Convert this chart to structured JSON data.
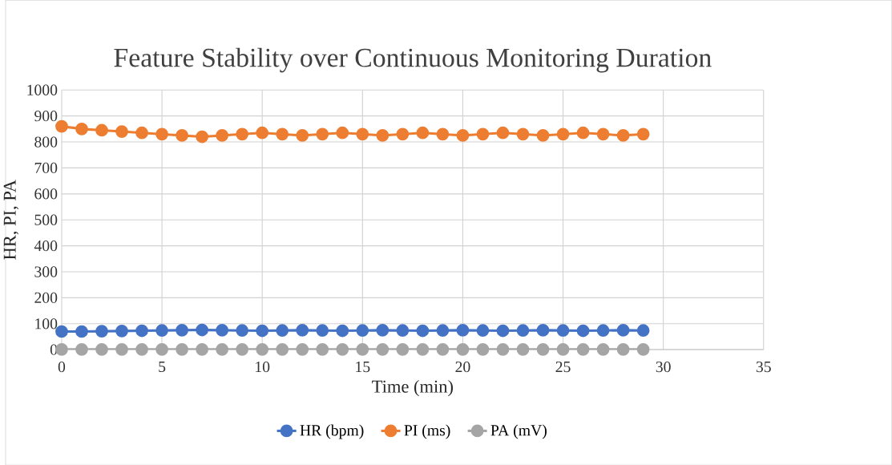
{
  "chart_data": {
    "type": "line",
    "title": "Feature Stability over Continuous Monitoring Duration",
    "xlabel": "Time (min)",
    "ylabel": "HR, PI, PA",
    "x": [
      0,
      1,
      2,
      3,
      4,
      5,
      6,
      7,
      8,
      9,
      10,
      11,
      12,
      13,
      14,
      15,
      16,
      17,
      18,
      19,
      20,
      21,
      22,
      23,
      24,
      25,
      26,
      27,
      28,
      29
    ],
    "series": [
      {
        "name": "HR (bpm)",
        "color": "#4472c4",
        "values": [
          70,
          70,
          71,
          72,
          73,
          74,
          75,
          76,
          75,
          74,
          73,
          74,
          75,
          74,
          73,
          74,
          75,
          74,
          73,
          74,
          75,
          74,
          73,
          74,
          75,
          74,
          73,
          74,
          75,
          74
        ]
      },
      {
        "name": "PI (ms)",
        "color": "#ed7d31",
        "values": [
          860,
          850,
          845,
          840,
          835,
          830,
          825,
          820,
          825,
          830,
          835,
          830,
          825,
          830,
          835,
          830,
          825,
          830,
          835,
          830,
          825,
          830,
          835,
          830,
          825,
          830,
          835,
          830,
          825,
          830
        ]
      },
      {
        "name": "PA (mV)",
        "color": "#a5a5a5",
        "values": [
          1,
          1,
          1,
          1,
          1,
          1,
          1,
          1,
          1,
          1,
          1,
          1,
          1,
          1,
          1,
          1,
          1,
          1,
          1,
          1,
          1,
          1,
          1,
          1,
          1,
          1,
          1,
          1,
          1,
          1
        ]
      }
    ],
    "xlim": [
      0,
      35
    ],
    "xticks": [
      0,
      5,
      10,
      15,
      20,
      25,
      30,
      35
    ],
    "ylim": [
      0,
      1000
    ],
    "yticks": [
      0,
      100,
      200,
      300,
      400,
      500,
      600,
      700,
      800,
      900,
      1000
    ],
    "grid": true,
    "legend": "bottom",
    "marker": "circle",
    "line_style": "solid"
  }
}
